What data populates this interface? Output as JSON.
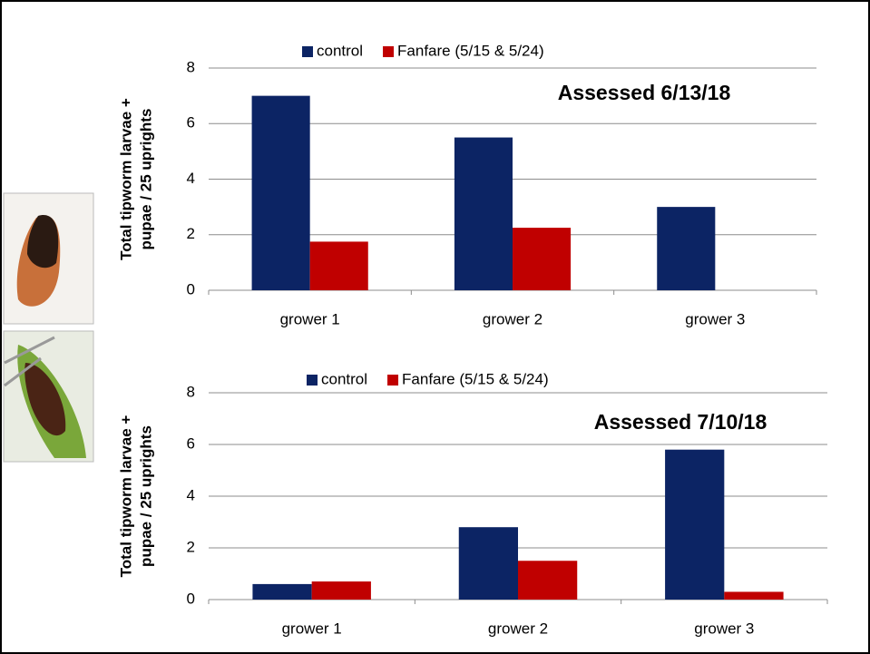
{
  "chart_data": [
    {
      "type": "bar",
      "annotation": "Assessed 6/13/18",
      "ylabel": [
        "Total tipworm larvae +",
        "pupae / 25 uprights"
      ],
      "categories": [
        "grower 1",
        "grower 2",
        "grower 3"
      ],
      "series": [
        {
          "name": "control",
          "color": "#0c2464",
          "values": [
            7,
            5.5,
            3
          ]
        },
        {
          "name": "Fanfare (5/15 & 5/24)",
          "color": "#c00000",
          "values": [
            1.75,
            2.25,
            0
          ]
        }
      ],
      "ylim": [
        0,
        8
      ],
      "yticks": [
        0,
        2,
        4,
        6,
        8
      ],
      "grid": true,
      "legend": "top"
    },
    {
      "type": "bar",
      "annotation": "Assessed 7/10/18",
      "ylabel": [
        "Total tipworm larvae +",
        "pupae / 25 uprights"
      ],
      "categories": [
        "grower 1",
        "grower 2",
        "grower 3"
      ],
      "series": [
        {
          "name": "control",
          "color": "#0c2464",
          "values": [
            0.6,
            2.8,
            5.8
          ]
        },
        {
          "name": "Fanfare (5/15 & 5/24)",
          "color": "#c00000",
          "values": [
            0.7,
            1.5,
            0.3
          ]
        }
      ],
      "ylim": [
        0,
        8
      ],
      "yticks": [
        0,
        2,
        4,
        6,
        8
      ],
      "grid": true,
      "legend": "top"
    }
  ]
}
